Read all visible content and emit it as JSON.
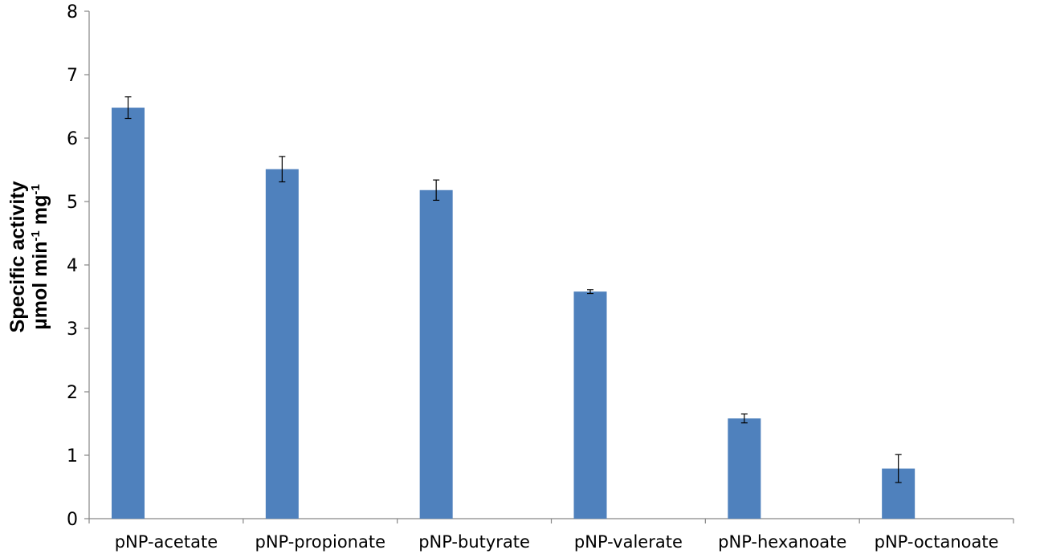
{
  "chart_data": {
    "type": "bar",
    "title": "",
    "xlabel": "",
    "ylabel": {
      "line1": "Specific activity",
      "line2_parts": [
        {
          "text": "µmol min",
          "sup": false
        },
        {
          "text": "-1",
          "sup": true
        },
        {
          "text": " mg",
          "sup": false
        },
        {
          "text": "-1",
          "sup": true
        }
      ]
    },
    "categories": [
      "pNP-acetate",
      "pNP-propionate",
      "pNP-butyrate",
      "pNP-valerate",
      "pNP-hexanoate",
      "pNP-octanoate"
    ],
    "values": [
      6.48,
      5.51,
      5.18,
      3.58,
      1.58,
      0.79
    ],
    "errors": [
      0.17,
      0.2,
      0.16,
      0.03,
      0.07,
      0.22
    ],
    "ylim": [
      0,
      8
    ],
    "yticks": [
      0,
      1,
      2,
      3,
      4,
      5,
      6,
      7,
      8
    ],
    "grid": false,
    "legend": "none",
    "bar_color": "#4f81bd",
    "axis_color": "#868686"
  }
}
